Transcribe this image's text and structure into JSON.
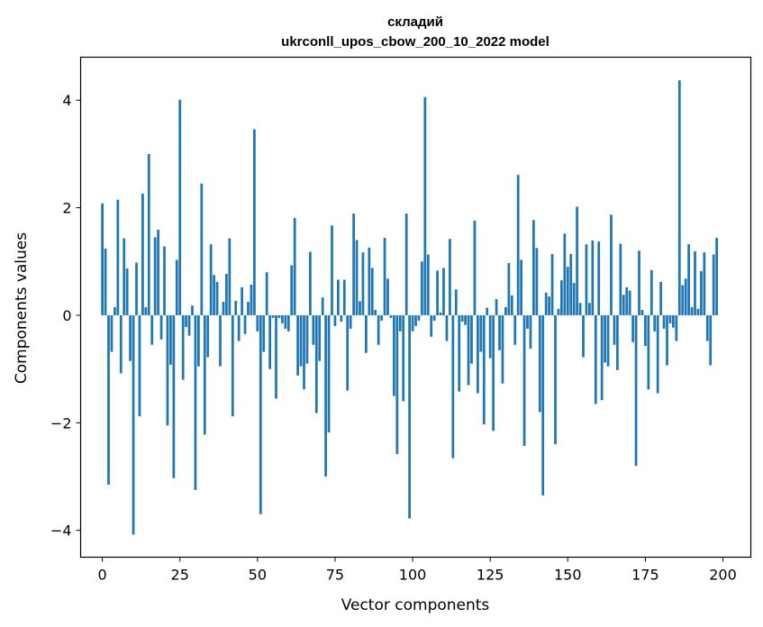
{
  "chart_data": {
    "type": "bar",
    "title_line1": "складий",
    "title_line2": "ukrconll_upos_cbow_200_10_2022 model",
    "xlabel": "Vector components",
    "ylabel": "Components values",
    "xlim": [
      -7,
      209
    ],
    "ylim": [
      -4.5,
      4.8
    ],
    "xticks": [
      0,
      25,
      50,
      75,
      100,
      125,
      150,
      175,
      200
    ],
    "xtick_labels": [
      "0",
      "25",
      "50",
      "75",
      "100",
      "125",
      "150",
      "175",
      "200"
    ],
    "yticks": [
      -4,
      -2,
      0,
      2,
      4
    ],
    "ytick_labels": [
      "−4",
      "−2",
      "0",
      "2",
      "4"
    ],
    "bar_color": "#1f77b4",
    "values": [
      2.08,
      1.24,
      -3.15,
      -0.68,
      0.15,
      2.15,
      -1.08,
      1.43,
      0.87,
      -0.85,
      -4.08,
      0.98,
      -1.88,
      2.26,
      0.15,
      3.0,
      -0.55,
      1.45,
      1.59,
      -0.45,
      1.28,
      -2.05,
      -0.92,
      -3.03,
      1.03,
      4.01,
      -1.2,
      -0.22,
      -0.38,
      0.18,
      -3.25,
      -0.95,
      2.45,
      -2.22,
      -0.78,
      1.32,
      0.75,
      0.62,
      -0.95,
      0.25,
      0.77,
      1.43,
      -1.88,
      0.27,
      -0.48,
      0.52,
      -0.35,
      0.25,
      0.57,
      3.46,
      -0.3,
      -3.7,
      -0.68,
      0.8,
      -1.0,
      -0.05,
      -1.55,
      -0.05,
      -0.15,
      -0.25,
      -0.3,
      0.93,
      1.81,
      -1.12,
      -0.95,
      -1.38,
      -0.9,
      1.18,
      -0.55,
      -1.82,
      -0.85,
      0.33,
      -3.0,
      -2.18,
      1.67,
      -0.2,
      0.66,
      -0.12,
      0.66,
      -1.4,
      -0.25,
      1.89,
      1.4,
      0.26,
      1.17,
      -0.7,
      1.26,
      0.88,
      0.1,
      -0.55,
      -0.1,
      1.44,
      0.68,
      -0.05,
      -1.5,
      -2.58,
      -0.3,
      -1.6,
      1.89,
      -3.78,
      -0.3,
      -0.2,
      -0.1,
      1.0,
      4.06,
      1.13,
      -0.4,
      -0.1,
      0.83,
      0.05,
      0.88,
      -0.48,
      1.42,
      -2.66,
      0.48,
      -1.42,
      -0.12,
      -0.18,
      -1.3,
      -0.9,
      1.76,
      -1.45,
      -0.68,
      -2.03,
      0.14,
      -0.8,
      -2.15,
      0.3,
      -0.65,
      -1.27,
      0.15,
      0.97,
      0.37,
      -0.55,
      2.61,
      1.03,
      -2.43,
      -0.25,
      -0.62,
      1.77,
      1.25,
      -1.8,
      -3.35,
      0.42,
      0.35,
      1.14,
      -2.4,
      0.12,
      0.65,
      1.52,
      0.9,
      1.14,
      0.6,
      2.02,
      0.23,
      -0.78,
      1.32,
      0.23,
      1.39,
      -1.65,
      1.37,
      -1.58,
      -0.88,
      -0.95,
      1.87,
      -0.55,
      -1.02,
      1.33,
      0.38,
      0.52,
      0.46,
      -0.5,
      -2.8,
      1.2,
      0.1,
      -0.57,
      -1.38,
      0.84,
      -0.3,
      -1.45,
      0.62,
      -0.25,
      -0.93,
      -0.15,
      -0.23,
      -0.48,
      4.37,
      0.56,
      0.68,
      1.32,
      0.15,
      1.19,
      0.12,
      0.82,
      1.17,
      -0.48,
      -0.93,
      1.13,
      1.44
    ]
  }
}
